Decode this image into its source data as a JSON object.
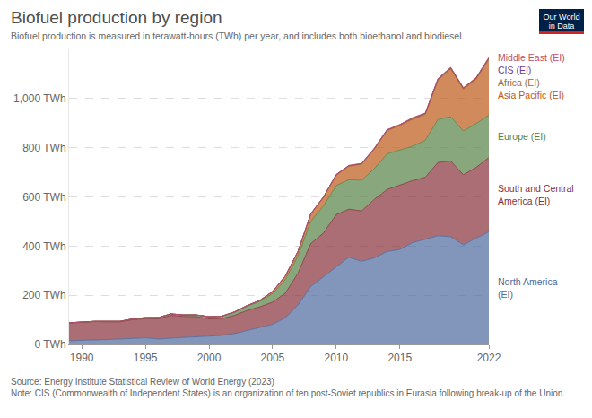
{
  "chart_data": {
    "type": "area",
    "title": "Biofuel production by region",
    "subtitle": "Biofuel production is measured in terawatt-hours (TWh) per year, and includes both bioethanol and biodiesel.",
    "logo": "Our World in Data",
    "source": "Source: Energy Institute Statistical Review of World Energy (2023)",
    "note": "Note: CIS (Commonwealth of Independent States) is an organization of ten post-Soviet republics in Eurasia following break-up of the Union.",
    "stacked": true,
    "grid": true,
    "x": [
      1989,
      1990,
      1991,
      1992,
      1993,
      1994,
      1995,
      1996,
      1997,
      1998,
      1999,
      2000,
      2001,
      2002,
      2003,
      2004,
      2005,
      2006,
      2007,
      2008,
      2009,
      2010,
      2011,
      2012,
      2013,
      2014,
      2015,
      2016,
      2017,
      2018,
      2019,
      2020,
      2021,
      2022
    ],
    "xlim": [
      1989,
      2022
    ],
    "xticks": [
      1990,
      1995,
      2000,
      2005,
      2010,
      2015,
      2022
    ],
    "ylim": [
      0,
      1200
    ],
    "yticks": [
      {
        "value": 0,
        "label": "0 TWh"
      },
      {
        "value": 200,
        "label": "200 TWh"
      },
      {
        "value": 400,
        "label": "400 TWh"
      },
      {
        "value": 600,
        "label": "600 TWh"
      },
      {
        "value": 800,
        "label": "800 TWh"
      },
      {
        "value": 1000,
        "label": "1,000 TWh"
      }
    ],
    "series": [
      {
        "name": "North America (EI)",
        "color": "#4c6a9c",
        "values": [
          15,
          16,
          18,
          20,
          22,
          25,
          27,
          22,
          26,
          29,
          31,
          34,
          37,
          44,
          56,
          68,
          82,
          108,
          160,
          235,
          275,
          318,
          355,
          338,
          352,
          378,
          386,
          414,
          428,
          442,
          438,
          405,
          432,
          458
        ]
      },
      {
        "name": "South and Central America (EI)",
        "color": "#883039",
        "values": [
          72,
          74,
          75,
          72,
          70,
          76,
          78,
          82,
          92,
          85,
          82,
          70,
          68,
          74,
          82,
          85,
          90,
          100,
          130,
          175,
          178,
          210,
          195,
          205,
          238,
          252,
          262,
          252,
          252,
          298,
          308,
          285,
          288,
          302
        ]
      },
      {
        "name": "Europe (EI)",
        "color": "#578145",
        "values": [
          1,
          1,
          1,
          2,
          2,
          3,
          4,
          5,
          6,
          6,
          7,
          8,
          9,
          12,
          17,
          22,
          35,
          55,
          70,
          90,
          110,
          118,
          120,
          125,
          125,
          145,
          142,
          140,
          150,
          175,
          180,
          178,
          178,
          172
        ]
      },
      {
        "name": "Asia Pacific (EI)",
        "color": "#be5915",
        "values": [
          0,
          0,
          0,
          0,
          0,
          0,
          0,
          0,
          0,
          0,
          0,
          1,
          1,
          2,
          3,
          4,
          8,
          15,
          18,
          30,
          35,
          42,
          55,
          65,
          80,
          95,
          100,
          110,
          105,
          160,
          195,
          170,
          180,
          228
        ]
      },
      {
        "name": "Africa (EI)",
        "color": "#996d39",
        "values": [
          0,
          0,
          0,
          0,
          0,
          0,
          0,
          0,
          0,
          0,
          0,
          0,
          0,
          0,
          0,
          0,
          0,
          0,
          0,
          0,
          1,
          1,
          1,
          1,
          1,
          1,
          2,
          2,
          2,
          2,
          2,
          2,
          3,
          3
        ]
      },
      {
        "name": "CIS (EI)",
        "color": "#6d3e91",
        "values": [
          0,
          0,
          0,
          0,
          0,
          0,
          0,
          0,
          0,
          0,
          0,
          0,
          0,
          0,
          0,
          0,
          0,
          0,
          1,
          1,
          1,
          2,
          2,
          2,
          2,
          2,
          2,
          3,
          3,
          3,
          3,
          3,
          3,
          3
        ]
      },
      {
        "name": "Middle East (EI)",
        "color": "#c15065",
        "values": [
          0,
          0,
          0,
          0,
          0,
          0,
          0,
          0,
          0,
          0,
          0,
          0,
          0,
          0,
          0,
          0,
          0,
          0,
          0,
          0,
          0,
          0,
          0,
          0,
          0,
          0,
          0,
          1,
          1,
          1,
          1,
          1,
          1,
          1
        ]
      }
    ]
  }
}
